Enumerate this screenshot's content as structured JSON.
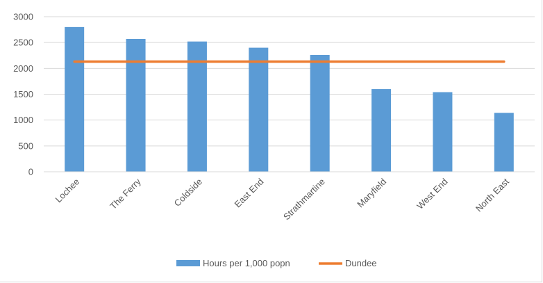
{
  "chart_data": {
    "type": "bar",
    "title": "",
    "xlabel": "",
    "ylabel": "",
    "categories": [
      "Lochee",
      "The Ferry",
      "Coldside",
      "East End",
      "Strathmartine",
      "Maryfield",
      "West End",
      "North East"
    ],
    "series": [
      {
        "name": "Hours per 1,000 popn",
        "type": "bar",
        "color": "#5b9bd5",
        "values": [
          2800,
          2570,
          2520,
          2400,
          2260,
          1600,
          1540,
          1140
        ]
      },
      {
        "name": "Dundee",
        "type": "line",
        "color": "#ed7d31",
        "values": [
          2130,
          2130,
          2130,
          2130,
          2130,
          2130,
          2130,
          2130
        ]
      }
    ],
    "ylim": [
      0,
      3000
    ],
    "yticks": [
      0,
      500,
      1000,
      1500,
      2000,
      2500,
      3000
    ],
    "grid": true,
    "legend_position": "bottom"
  }
}
